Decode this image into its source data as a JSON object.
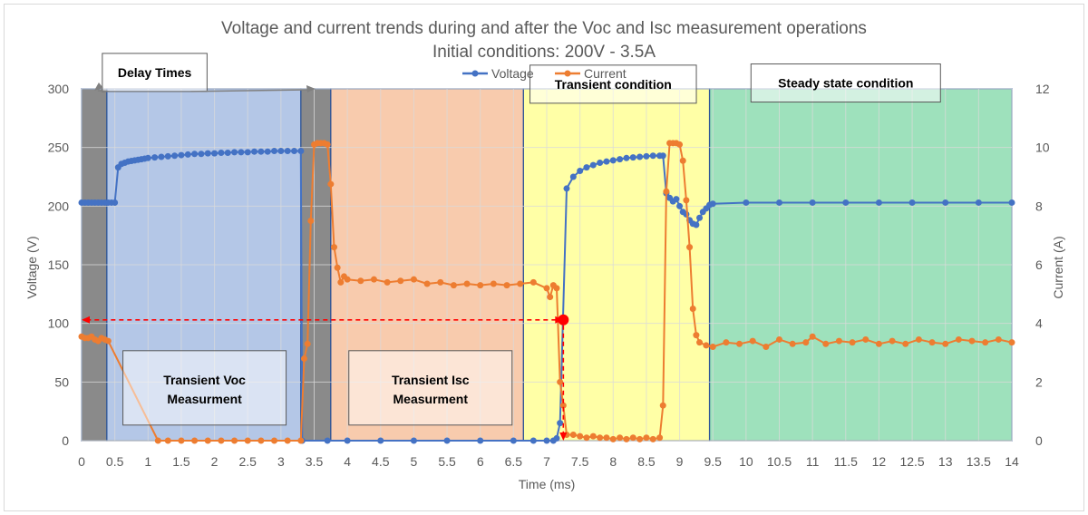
{
  "chart_data": {
    "type": "line",
    "title": "Voltage and current trends during and after the Voc and Isc measurement operations",
    "subtitle": "Initial conditions: 200V - 3.5A",
    "xlabel": "Time (ms)",
    "ylabel_left": "Voltage (V)",
    "ylabel_right": "Current (A)",
    "xlim": [
      0,
      14
    ],
    "ylim_left": [
      0,
      300
    ],
    "ylim_right": [
      0,
      12
    ],
    "x_ticks": [
      "0",
      "0.5",
      "1",
      "1.5",
      "2",
      "2.5",
      "3",
      "3.5",
      "4",
      "4.5",
      "5",
      "5.5",
      "6",
      "6.5",
      "7",
      "7.5",
      "8",
      "8.5",
      "9",
      "9.5",
      "10",
      "10.5",
      "11",
      "11.5",
      "12",
      "12.5",
      "13",
      "13.5",
      "14"
    ],
    "y_left_ticks": [
      "0",
      "50",
      "100",
      "150",
      "200",
      "250",
      "300"
    ],
    "y_right_ticks": [
      "0",
      "2",
      "4",
      "6",
      "8",
      "10",
      "12"
    ],
    "grid": true,
    "legend_position": "top",
    "series": [
      {
        "name": "Voltage",
        "axis": "left",
        "color": "#4472C4",
        "points": [
          [
            0.0,
            203
          ],
          [
            0.05,
            203
          ],
          [
            0.1,
            203
          ],
          [
            0.15,
            203
          ],
          [
            0.2,
            203
          ],
          [
            0.25,
            203
          ],
          [
            0.3,
            203
          ],
          [
            0.35,
            203
          ],
          [
            0.4,
            203
          ],
          [
            0.45,
            203
          ],
          [
            0.5,
            203
          ],
          [
            0.55,
            233
          ],
          [
            0.6,
            236
          ],
          [
            0.65,
            237
          ],
          [
            0.7,
            238
          ],
          [
            0.75,
            238.5
          ],
          [
            0.8,
            239
          ],
          [
            0.85,
            239.5
          ],
          [
            0.9,
            240
          ],
          [
            0.95,
            240.5
          ],
          [
            1.0,
            241
          ],
          [
            1.1,
            241.5
          ],
          [
            1.2,
            242
          ],
          [
            1.3,
            242.5
          ],
          [
            1.4,
            243
          ],
          [
            1.5,
            243.5
          ],
          [
            1.6,
            244
          ],
          [
            1.7,
            244.5
          ],
          [
            1.8,
            244.5
          ],
          [
            1.9,
            245
          ],
          [
            2.0,
            245
          ],
          [
            2.1,
            245.5
          ],
          [
            2.2,
            245.5
          ],
          [
            2.3,
            246
          ],
          [
            2.4,
            246
          ],
          [
            2.5,
            246
          ],
          [
            2.6,
            246.5
          ],
          [
            2.7,
            246.5
          ],
          [
            2.8,
            246.5
          ],
          [
            2.9,
            247
          ],
          [
            3.0,
            247
          ],
          [
            3.1,
            247
          ],
          [
            3.2,
            247
          ],
          [
            3.3,
            247
          ],
          [
            3.32,
            0
          ],
          [
            3.7,
            0
          ],
          [
            4.0,
            0
          ],
          [
            4.5,
            0
          ],
          [
            5.0,
            0
          ],
          [
            5.5,
            0
          ],
          [
            6.0,
            0
          ],
          [
            6.5,
            0
          ],
          [
            6.8,
            0
          ],
          [
            7.0,
            0
          ],
          [
            7.1,
            0
          ],
          [
            7.15,
            2
          ],
          [
            7.2,
            15
          ],
          [
            7.3,
            215
          ],
          [
            7.4,
            225
          ],
          [
            7.5,
            230
          ],
          [
            7.6,
            233
          ],
          [
            7.7,
            235
          ],
          [
            7.8,
            237
          ],
          [
            7.9,
            238
          ],
          [
            8.0,
            239
          ],
          [
            8.1,
            240
          ],
          [
            8.2,
            241
          ],
          [
            8.3,
            241.5
          ],
          [
            8.4,
            242
          ],
          [
            8.5,
            242.5
          ],
          [
            8.6,
            243
          ],
          [
            8.7,
            243
          ],
          [
            8.75,
            243
          ],
          [
            8.8,
            211
          ],
          [
            8.85,
            207
          ],
          [
            8.9,
            204
          ],
          [
            8.95,
            206
          ],
          [
            9.0,
            200
          ],
          [
            9.05,
            195
          ],
          [
            9.1,
            193
          ],
          [
            9.15,
            188
          ],
          [
            9.2,
            185
          ],
          [
            9.25,
            184
          ],
          [
            9.3,
            190
          ],
          [
            9.35,
            195
          ],
          [
            9.4,
            198
          ],
          [
            9.45,
            201
          ],
          [
            9.5,
            202
          ],
          [
            10.0,
            203
          ],
          [
            10.5,
            203
          ],
          [
            11.0,
            203
          ],
          [
            11.5,
            203
          ],
          [
            12.0,
            203
          ],
          [
            12.5,
            203
          ],
          [
            13.0,
            203
          ],
          [
            13.5,
            203
          ],
          [
            14.0,
            203
          ]
        ]
      },
      {
        "name": "Current",
        "axis": "right",
        "color": "#ED7D31",
        "points": [
          [
            0.0,
            3.55
          ],
          [
            0.05,
            3.5
          ],
          [
            0.1,
            3.5
          ],
          [
            0.15,
            3.55
          ],
          [
            0.2,
            3.45
          ],
          [
            0.25,
            3.4
          ],
          [
            0.3,
            3.5
          ],
          [
            0.35,
            3.45
          ],
          [
            0.4,
            3.4
          ],
          [
            1.15,
            0
          ],
          [
            1.3,
            0
          ],
          [
            1.5,
            0
          ],
          [
            1.7,
            0
          ],
          [
            1.9,
            0
          ],
          [
            2.1,
            0
          ],
          [
            2.3,
            0
          ],
          [
            2.5,
            0
          ],
          [
            2.7,
            0
          ],
          [
            2.9,
            0
          ],
          [
            3.1,
            0
          ],
          [
            3.3,
            0
          ],
          [
            3.35,
            2.8
          ],
          [
            3.4,
            3.3
          ],
          [
            3.45,
            7.5
          ],
          [
            3.5,
            10.1
          ],
          [
            3.55,
            10.15
          ],
          [
            3.6,
            10.15
          ],
          [
            3.65,
            10.15
          ],
          [
            3.7,
            10.1
          ],
          [
            3.75,
            8.75
          ],
          [
            3.8,
            6.6
          ],
          [
            3.85,
            5.9
          ],
          [
            3.9,
            5.4
          ],
          [
            3.95,
            5.6
          ],
          [
            4.0,
            5.5
          ],
          [
            4.2,
            5.45
          ],
          [
            4.4,
            5.5
          ],
          [
            4.6,
            5.4
          ],
          [
            4.8,
            5.45
          ],
          [
            5.0,
            5.5
          ],
          [
            5.2,
            5.35
          ],
          [
            5.4,
            5.4
          ],
          [
            5.6,
            5.3
          ],
          [
            5.8,
            5.35
          ],
          [
            6.0,
            5.3
          ],
          [
            6.2,
            5.35
          ],
          [
            6.4,
            5.3
          ],
          [
            6.6,
            5.35
          ],
          [
            6.8,
            5.4
          ],
          [
            7.0,
            5.2
          ],
          [
            7.05,
            4.9
          ],
          [
            7.1,
            5.3
          ],
          [
            7.15,
            5.2
          ],
          [
            7.2,
            2.0
          ],
          [
            7.25,
            1.2
          ],
          [
            7.3,
            0.2
          ],
          [
            7.4,
            0.2
          ],
          [
            7.5,
            0.15
          ],
          [
            7.6,
            0.1
          ],
          [
            7.7,
            0.15
          ],
          [
            7.8,
            0.1
          ],
          [
            7.9,
            0.1
          ],
          [
            8.0,
            0.05
          ],
          [
            8.1,
            0.1
          ],
          [
            8.2,
            0.05
          ],
          [
            8.3,
            0.1
          ],
          [
            8.4,
            0.05
          ],
          [
            8.5,
            0.1
          ],
          [
            8.6,
            0.05
          ],
          [
            8.7,
            0.1
          ],
          [
            8.75,
            1.2
          ],
          [
            8.8,
            8.5
          ],
          [
            8.85,
            10.15
          ],
          [
            8.9,
            10.15
          ],
          [
            8.95,
            10.15
          ],
          [
            9.0,
            10.1
          ],
          [
            9.05,
            9.55
          ],
          [
            9.1,
            8.2
          ],
          [
            9.15,
            6.6
          ],
          [
            9.2,
            4.5
          ],
          [
            9.25,
            3.6
          ],
          [
            9.3,
            3.35
          ],
          [
            9.4,
            3.25
          ],
          [
            9.5,
            3.2
          ],
          [
            9.7,
            3.35
          ],
          [
            9.9,
            3.3
          ],
          [
            10.1,
            3.4
          ],
          [
            10.3,
            3.2
          ],
          [
            10.5,
            3.45
          ],
          [
            10.7,
            3.3
          ],
          [
            10.9,
            3.35
          ],
          [
            11.0,
            3.55
          ],
          [
            11.2,
            3.3
          ],
          [
            11.4,
            3.4
          ],
          [
            11.6,
            3.35
          ],
          [
            11.8,
            3.45
          ],
          [
            12.0,
            3.3
          ],
          [
            12.2,
            3.4
          ],
          [
            12.4,
            3.3
          ],
          [
            12.6,
            3.45
          ],
          [
            12.8,
            3.35
          ],
          [
            13.0,
            3.3
          ],
          [
            13.2,
            3.45
          ],
          [
            13.4,
            3.4
          ],
          [
            13.6,
            3.35
          ],
          [
            13.8,
            3.45
          ],
          [
            14.0,
            3.35
          ]
        ]
      }
    ],
    "regions": [
      {
        "x0": 0,
        "x1": 0.38,
        "fill": "#595959",
        "opacity": 0.7
      },
      {
        "x0": 0.38,
        "x1": 3.3,
        "fill": "#4472C4",
        "opacity": 0.4
      },
      {
        "x0": 3.3,
        "x1": 3.75,
        "fill": "#595959",
        "opacity": 0.7
      },
      {
        "x0": 3.75,
        "x1": 6.65,
        "fill": "#ED7D31",
        "opacity": 0.4
      },
      {
        "x0": 6.65,
        "x1": 9.45,
        "fill": "#FFFF00",
        "opacity": 0.35
      },
      {
        "x0": 9.45,
        "x1": 14,
        "fill": "#00B050",
        "opacity": 0.38
      }
    ],
    "annotations": [
      {
        "text": "Delay Times",
        "x": 1.1,
        "y": 314,
        "fill": "#ffffff"
      },
      {
        "text": "Transient condition",
        "x": 8.0,
        "y": 304,
        "fill": "#ffffff"
      },
      {
        "text": "Steady state condition",
        "x": 11.5,
        "y": 305,
        "fill": "#ffffff"
      },
      {
        "text": "Transient Voc",
        "x2": "Measurment",
        "x": 1.85,
        "y": 45,
        "fill": "#ffffff"
      },
      {
        "text": "Transient Isc",
        "x2": "Measurment",
        "x": 5.25,
        "y": 45,
        "fill": "#ffffff"
      }
    ],
    "highlight_point": {
      "x": 7.25,
      "y": 103,
      "color": "#FF0000"
    }
  }
}
